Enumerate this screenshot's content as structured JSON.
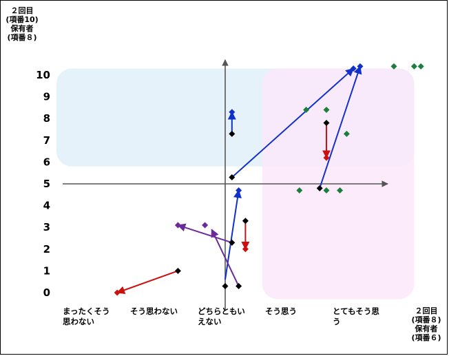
{
  "chart_data": {
    "type": "scatter",
    "ylabel_lines": [
      "２回目",
      "(項番10)",
      "保有者",
      "(項番８)"
    ],
    "xlabel_lines": [
      "２回目",
      "(項番８)",
      "保有者",
      "(項番６)"
    ],
    "y_ticks": [
      "10",
      "9",
      "8",
      "7",
      "6",
      "5",
      "4",
      "3",
      "2",
      "1",
      "0"
    ],
    "ylim": [
      0,
      10
    ],
    "x_categories": [
      [
        "まったくそう",
        "思わない"
      ],
      [
        "そう思わない"
      ],
      [
        "どちらともい",
        "えない"
      ],
      [
        "そう思う"
      ],
      [
        "とてもそう思",
        "う"
      ]
    ],
    "axis_origin": {
      "x": 2,
      "y": 5
    },
    "regions": [
      {
        "name": "upper",
        "color": "#e0f0f9",
        "x_range": [
          -0.5,
          4.8
        ],
        "y_range": [
          5.8,
          10.3
        ]
      },
      {
        "name": "right",
        "color": "#fbe8fa",
        "x_range": [
          2.55,
          4.8
        ],
        "y_range": [
          -0.3,
          10.3
        ]
      }
    ],
    "series": [
      {
        "color": "#1a7f3c",
        "points": [
          [
            3.1,
            4.7
          ],
          [
            3.5,
            4.7
          ],
          [
            3.7,
            4.7
          ],
          [
            3.5,
            8.4
          ],
          [
            3.2,
            8.4
          ],
          [
            3.8,
            7.3
          ],
          [
            4.5,
            10.4
          ],
          [
            4.9,
            10.4
          ],
          [
            4.8,
            10.4
          ]
        ]
      },
      {
        "color": "#000000",
        "points": [
          [
            1.3,
            1.0
          ],
          [
            2.1,
            7.3
          ],
          [
            2.1,
            5.3
          ],
          [
            2.1,
            2.3
          ],
          [
            2.2,
            0.3
          ],
          [
            2.0,
            0.3
          ],
          [
            2.3,
            3.3
          ],
          [
            3.5,
            7.8
          ],
          [
            3.4,
            4.8
          ]
        ]
      },
      {
        "color": "#1030c8",
        "points": [
          [
            2.1,
            8.3
          ],
          [
            3.9,
            10.3
          ],
          [
            4.0,
            10.4
          ],
          [
            2.2,
            4.7
          ]
        ]
      },
      {
        "color": "#cc1010",
        "points": [
          [
            0.4,
            0.0
          ],
          [
            3.5,
            6.2
          ],
          [
            2.3,
            2.0
          ]
        ]
      },
      {
        "color": "#6a2a9a",
        "points": [
          [
            1.3,
            3.1
          ],
          [
            1.7,
            3.1
          ]
        ]
      }
    ],
    "arrows": [
      {
        "color": "#cc1010",
        "from": [
          1.3,
          1.0
        ],
        "to": [
          0.4,
          0.0
        ]
      },
      {
        "color": "#1030c8",
        "from": [
          2.1,
          7.3
        ],
        "to": [
          2.1,
          8.3
        ]
      },
      {
        "color": "#1030c8",
        "from": [
          2.1,
          5.3
        ],
        "to": [
          3.9,
          10.3
        ]
      },
      {
        "color": "#1030c8",
        "from": [
          3.4,
          4.8
        ],
        "to": [
          4.0,
          10.4
        ]
      },
      {
        "color": "#cc1010",
        "from": [
          3.5,
          7.8
        ],
        "to": [
          3.5,
          6.2
        ]
      },
      {
        "color": "#1030c8",
        "from": [
          2.0,
          0.6
        ],
        "to": [
          2.2,
          4.7
        ]
      },
      {
        "color": "#cc1010",
        "from": [
          2.3,
          3.3
        ],
        "to": [
          2.3,
          2.0
        ]
      },
      {
        "color": "#6a2a9a",
        "from": [
          2.1,
          2.3
        ],
        "to": [
          1.3,
          3.1
        ]
      },
      {
        "color": "#6a2a9a",
        "from": [
          2.2,
          0.3
        ],
        "to": [
          1.8,
          2.9
        ]
      }
    ]
  }
}
